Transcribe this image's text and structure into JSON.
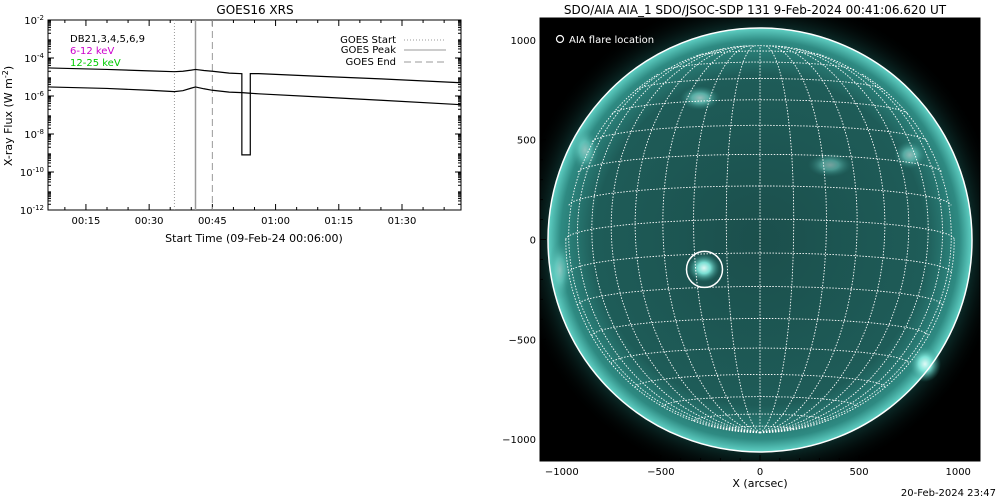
{
  "chart_data": [
    {
      "type": "line",
      "title": "GOES16 XRS",
      "xlabel": "Start Time (09-Feb-24 00:06:00)",
      "ylabel": "X-ray Flux (W m^-2)",
      "y_scale": "log",
      "ylim": [
        1e-12,
        0.01
      ],
      "y_ticks": [
        {
          "value": 1e-12,
          "base": "10",
          "exp": "-12"
        },
        {
          "value": 1e-10,
          "base": "10",
          "exp": "-10"
        },
        {
          "value": 1e-08,
          "base": "10",
          "exp": "-8"
        },
        {
          "value": 1e-06,
          "base": "10",
          "exp": "-6"
        },
        {
          "value": 0.0001,
          "base": "10",
          "exp": "-4"
        },
        {
          "value": 0.01,
          "base": "10",
          "exp": "-2"
        }
      ],
      "x_range": [
        "00:06",
        "01:44"
      ],
      "x_ticks": [
        "00:15",
        "00:30",
        "00:45",
        "01:00",
        "01:15",
        "01:30"
      ],
      "grid": false,
      "corner_labels": [
        {
          "text": "DB21,3,4,5,6,9",
          "color": "#000000"
        },
        {
          "text": "6-12 keV",
          "color": "#cc00cc"
        },
        {
          "text": "12-25 keV",
          "color": "#00cc00"
        }
      ],
      "legend_position": "top-right",
      "legend": [
        {
          "label": "GOES Start",
          "style": "dotted",
          "color": "#999999"
        },
        {
          "label": "GOES Peak",
          "style": "solid",
          "color": "#999999"
        },
        {
          "label": "GOES End",
          "style": "dashed",
          "color": "#999999"
        }
      ],
      "events": {
        "start": "00:36",
        "peak": "00:41",
        "end": "00:45"
      },
      "series": [
        {
          "x": [
            "00:06",
            "00:20",
            "00:30",
            "00:36",
            "00:38",
            "00:40",
            "00:41",
            "00:43",
            "00:45",
            "00:49",
            "00:52",
            "00:52",
            "00:54",
            "00:54",
            "00:56",
            "01:10",
            "01:25",
            "01:44"
          ],
          "y": [
            3e-05,
            2.5e-05,
            2.1e-05,
            1.9e-05,
            2e-05,
            2.3e-05,
            2.5e-05,
            2.2e-05,
            2e-05,
            1.6e-05,
            1.5e-05,
            8e-10,
            8e-10,
            1.5e-05,
            1.5e-05,
            1.1e-05,
            8e-06,
            5e-06
          ],
          "color": "#000000"
        },
        {
          "x": [
            "00:06",
            "00:20",
            "00:30",
            "00:36",
            "00:38",
            "00:40",
            "00:41",
            "00:43",
            "00:45",
            "00:49",
            "00:52",
            "00:54",
            "00:56",
            "01:10",
            "01:25",
            "01:44"
          ],
          "y": [
            3e-06,
            2.5e-06,
            2e-06,
            1.7e-06,
            1.9e-06,
            2.6e-06,
            3e-06,
            2.4e-06,
            2e-06,
            1.6e-06,
            1.5e-06,
            1.4e-06,
            1.3e-06,
            9e-07,
            6e-07,
            3.5e-07
          ],
          "color": "#000000"
        }
      ],
      "footer_timestamp": "20-Feb-2024 23:47"
    },
    {
      "type": "image",
      "title": "SDO/AIA AIA_1 SDO/JSOC-SDP 131  9-Feb-2024 00:41:06.620 UT",
      "xlabel": "X (arcsec)",
      "ylabel": "",
      "xlim": [
        -1110,
        1110
      ],
      "ylim": [
        -1110,
        1110
      ],
      "x_ticks": [
        -1000,
        -500,
        0,
        500,
        1000
      ],
      "y_ticks": [
        -1000,
        -500,
        0,
        500,
        1000
      ],
      "legend": [
        {
          "label": "AIA flare location",
          "marker": "circle",
          "color": "#ffffff"
        }
      ],
      "flare_location": {
        "x": -280,
        "y": -150
      },
      "solar_disk_radius": 980,
      "background_color": "#000000",
      "disk_color": "#1a5a55",
      "grid_color": "#ffffff"
    }
  ]
}
